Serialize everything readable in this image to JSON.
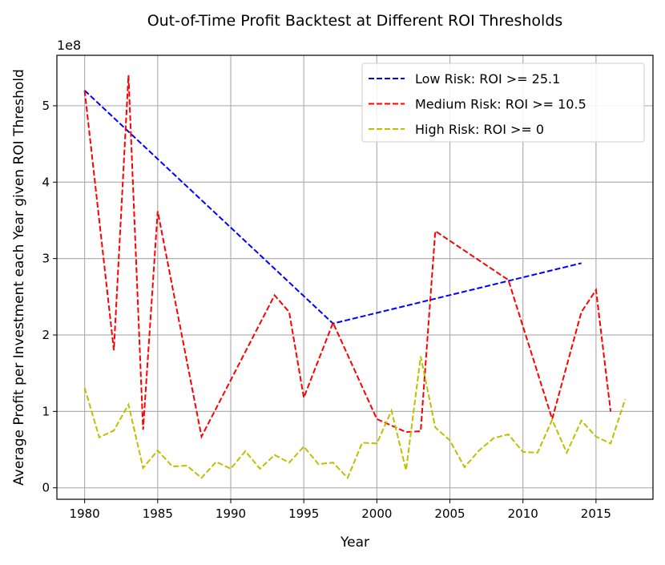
{
  "chart_data": {
    "type": "line",
    "title": "Out-of-Time Profit Backtest at Different ROI Thresholds",
    "xlabel": "Year",
    "ylabel": "Average Profit per Investment each Year given ROI Threshold",
    "y_offset_text": "1e8",
    "xlim": [
      1978.1,
      2018.9
    ],
    "ylim": [
      -0.15,
      5.66
    ],
    "x_ticks": [
      1980,
      1985,
      1990,
      1995,
      2000,
      2005,
      2010,
      2015
    ],
    "y_ticks": [
      0,
      1,
      2,
      3,
      4,
      5
    ],
    "grid": true,
    "legend_position": "top-right",
    "series": [
      {
        "name": "Low Risk: ROI >= 25.1",
        "color": "#0000ff",
        "style": "dashed",
        "x": [
          1980,
          1997,
          2014
        ],
        "y": [
          5.2,
          2.15,
          2.94
        ]
      },
      {
        "name": "Medium Risk: ROI >= 10.5",
        "color": "#ff0000",
        "style": "dashed",
        "x": [
          1980,
          1982,
          1983,
          1984,
          1985,
          1988,
          1993,
          1994,
          1995,
          1997,
          2000,
          2002,
          2003,
          2004,
          2009,
          2012,
          2014,
          2015,
          2016
        ],
        "y": [
          5.2,
          1.8,
          5.4,
          0.76,
          3.62,
          0.67,
          2.52,
          2.3,
          1.18,
          2.16,
          0.9,
          0.73,
          0.74,
          3.36,
          2.72,
          0.9,
          2.3,
          2.59,
          1.0
        ]
      },
      {
        "name": "High Risk: ROI >= 0",
        "color": "#bfbf00",
        "style": "dashed",
        "x": [
          1980,
          1981,
          1982,
          1983,
          1984,
          1985,
          1986,
          1987,
          1988,
          1989,
          1990,
          1991,
          1992,
          1993,
          1994,
          1995,
          1996,
          1997,
          1998,
          1999,
          2000,
          2001,
          2002,
          2003,
          2004,
          2005,
          2006,
          2007,
          2008,
          2009,
          2010,
          2011,
          2012,
          2013,
          2014,
          2015,
          2016,
          2017
        ],
        "y": [
          1.31,
          0.66,
          0.75,
          1.09,
          0.26,
          0.49,
          0.28,
          0.29,
          0.13,
          0.34,
          0.25,
          0.48,
          0.25,
          0.43,
          0.33,
          0.54,
          0.31,
          0.33,
          0.13,
          0.59,
          0.58,
          1.01,
          0.23,
          1.72,
          0.79,
          0.62,
          0.27,
          0.49,
          0.65,
          0.7,
          0.47,
          0.46,
          0.89,
          0.46,
          0.88,
          0.67,
          0.58,
          1.16
        ]
      }
    ]
  }
}
